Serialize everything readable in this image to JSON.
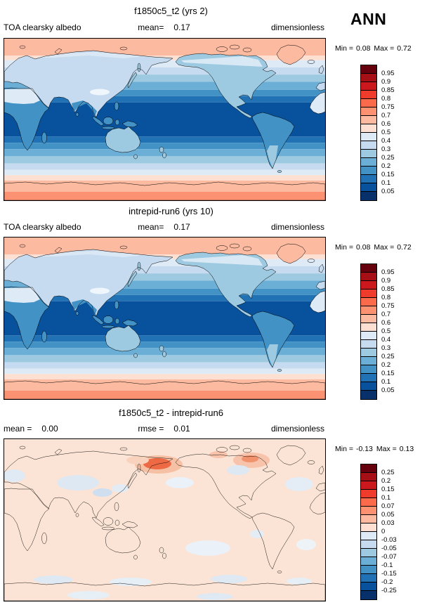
{
  "season": "ANN",
  "panels": [
    {
      "title": "f1850c5_t2 (yrs 2)",
      "variable_label": "TOA clearsky albedo",
      "mean_label": "mean=",
      "mean_value": "0.17",
      "units_label": "dimensionless",
      "min_label": "Min =",
      "min_value": "0.08",
      "max_label": "Max =",
      "max_value": "0.72",
      "colorbar_labels": [
        "0.95",
        "0.9",
        "0.85",
        "0.8",
        "0.75",
        "0.7",
        "0.6",
        "0.5",
        "0.4",
        "0.3",
        "0.25",
        "0.2",
        "0.15",
        "0.1",
        "0.05"
      ]
    },
    {
      "title": "intrepid-run6 (yrs 10)",
      "variable_label": "TOA clearsky albedo",
      "mean_label": "mean=",
      "mean_value": "0.17",
      "units_label": "dimensionless",
      "min_label": "Min =",
      "min_value": "0.08",
      "max_label": "Max =",
      "max_value": "0.72",
      "colorbar_labels": [
        "0.95",
        "0.9",
        "0.85",
        "0.8",
        "0.75",
        "0.7",
        "0.6",
        "0.5",
        "0.4",
        "0.3",
        "0.25",
        "0.2",
        "0.15",
        "0.1",
        "0.05"
      ]
    },
    {
      "title": "f1850c5_t2 - intrepid-run6",
      "mean_label": "mean =",
      "mean_value": "0.00",
      "rmse_label": "rmse =",
      "rmse_value": "0.01",
      "units_label": "dimensionless",
      "min_label": "Min =",
      "min_value": "-0.13",
      "max_label": "Max =",
      "max_value": "0.13",
      "colorbar_labels": [
        "0.25",
        "0.2",
        "0.15",
        "0.1",
        "0.07",
        "0.05",
        "0.03",
        "0",
        "-0.03",
        "-0.05",
        "-0.07",
        "-0.1",
        "-0.15",
        "-0.2",
        "-0.25"
      ]
    }
  ],
  "palette_top_to_bottom": [
    "#67000d",
    "#a50f15",
    "#cb181d",
    "#ef3b2c",
    "#fb6a4a",
    "#fc9272",
    "#fcbba1",
    "#fee0d2",
    "#deebf7",
    "#c6dbef",
    "#9ecae1",
    "#6baed6",
    "#4292c6",
    "#2171b5",
    "#08519c",
    "#08306b"
  ],
  "chart_data": [
    {
      "type": "heatmap",
      "subtype": "global filled-contour map, cylindrical equidistant, lon 0E-360E, lat 90S-90N",
      "title": "f1850c5_t2 (yrs 2)",
      "variable": "TOA clearsky albedo",
      "units": "dimensionless",
      "season": "ANN",
      "mean": 0.17,
      "min": 0.08,
      "max": 0.72,
      "contour_levels": [
        0.05,
        0.1,
        0.15,
        0.2,
        0.25,
        0.3,
        0.4,
        0.5,
        0.6,
        0.7,
        0.75,
        0.8,
        0.85,
        0.9,
        0.95
      ],
      "legend_position": "right vertical colorbar",
      "zonal_bands": [
        {
          "lat_from": 90,
          "lat_to": 71,
          "value": 0.62,
          "color": "#fcbba1"
        },
        {
          "lat_from": 71,
          "lat_to": 66,
          "value": 0.55,
          "color": "#fee0d2"
        },
        {
          "lat_from": 66,
          "lat_to": 58,
          "value": 0.45,
          "color": "#deebf7"
        },
        {
          "lat_from": 58,
          "lat_to": 50,
          "value": 0.35,
          "color": "#c6dbef"
        },
        {
          "lat_from": 50,
          "lat_to": 42,
          "value": 0.28,
          "color": "#9ecae1"
        },
        {
          "lat_from": 42,
          "lat_to": 33,
          "value": 0.22,
          "color": "#6baed6"
        },
        {
          "lat_from": 33,
          "lat_to": 26,
          "value": 0.18,
          "color": "#4292c6"
        },
        {
          "lat_from": 26,
          "lat_to": 19,
          "value": 0.13,
          "color": "#2171b5"
        },
        {
          "lat_from": 19,
          "lat_to": -19,
          "value": 0.09,
          "color": "#08519c"
        },
        {
          "lat_from": -19,
          "lat_to": -26,
          "value": 0.13,
          "color": "#2171b5"
        },
        {
          "lat_from": -26,
          "lat_to": -33,
          "value": 0.18,
          "color": "#4292c6"
        },
        {
          "lat_from": -33,
          "lat_to": -41,
          "value": 0.22,
          "color": "#6baed6"
        },
        {
          "lat_from": -41,
          "lat_to": -49,
          "value": 0.28,
          "color": "#9ecae1"
        },
        {
          "lat_from": -49,
          "lat_to": -56,
          "value": 0.35,
          "color": "#c6dbef"
        },
        {
          "lat_from": -56,
          "lat_to": -62,
          "value": 0.45,
          "color": "#deebf7"
        },
        {
          "lat_from": -62,
          "lat_to": -68,
          "value": 0.55,
          "color": "#fee0d2"
        },
        {
          "lat_from": -68,
          "lat_to": -90,
          "value": 0.62,
          "color": "#fcbba1"
        }
      ],
      "notes": "Minimum albedo (~0.08-0.10, dark blue) over tropical oceans; albedo increases poleward; high albedo (~0.55-0.7, salmon) over Arctic sea ice, Greenland and Antarctica; Sahara, Tibet and boreal land lighter (0.2-0.45)."
    },
    {
      "type": "heatmap",
      "subtype": "global filled-contour map, cylindrical equidistant, lon 0E-360E, lat 90S-90N",
      "title": "intrepid-run6 (yrs 10)",
      "variable": "TOA clearsky albedo",
      "units": "dimensionless",
      "season": "ANN",
      "mean": 0.17,
      "min": 0.08,
      "max": 0.72,
      "contour_levels": [
        0.05,
        0.1,
        0.15,
        0.2,
        0.25,
        0.3,
        0.4,
        0.5,
        0.6,
        0.7,
        0.75,
        0.8,
        0.85,
        0.9,
        0.95
      ],
      "legend_position": "right vertical colorbar",
      "zonal_bands_same_as_panel": 1,
      "notes": "Visually nearly identical spatial pattern to panel 1."
    },
    {
      "type": "heatmap",
      "subtype": "global filled-contour difference map",
      "title": "f1850c5_t2 - intrepid-run6",
      "variable": "TOA clearsky albedo difference",
      "units": "dimensionless",
      "season": "ANN",
      "mean": 0.0,
      "rmse": 0.01,
      "min": -0.13,
      "max": 0.13,
      "contour_levels": [
        -0.25,
        -0.2,
        -0.15,
        -0.1,
        -0.07,
        -0.05,
        -0.03,
        0,
        0.03,
        0.05,
        0.07,
        0.1,
        0.15,
        0.2,
        0.25
      ],
      "background_value": "approximately +0.01 (pale orange) over most of the globe",
      "anomalies": [
        {
          "region": "NE Siberia / Chukotka / Kamchatka",
          "value": 0.1
        },
        {
          "region": "Bering Sea",
          "value": 0.05
        },
        {
          "region": "Baffin Island / Davis Strait",
          "value": 0.07
        },
        {
          "region": "Canadian Arctic islands",
          "value": 0.05
        },
        {
          "region": "Europe",
          "value": -0.03
        },
        {
          "region": "Central Asia",
          "value": -0.03
        },
        {
          "region": "Tibetan Plateau",
          "value": -0.05
        },
        {
          "region": "Hudson Bay region",
          "value": -0.03
        },
        {
          "region": "North Atlantic",
          "value": -0.03
        },
        {
          "region": "South Pacific patches",
          "value": -0.03
        },
        {
          "region": "Southern Ocean patches",
          "value": -0.03
        },
        {
          "region": "Antarctica patches",
          "value": -0.03
        }
      ]
    }
  ]
}
